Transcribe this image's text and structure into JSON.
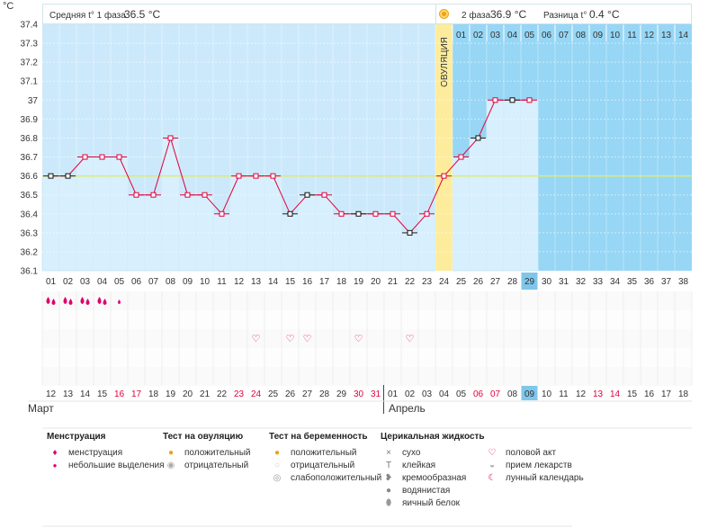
{
  "header": {
    "unit": "°С",
    "phase1_label": "Средняя t° 1 фаза",
    "phase1_value": "36.5 °С",
    "phase2_label": "2 фаза",
    "phase2_value": "36.9 °С",
    "diff_label": "Разница t°",
    "diff_value": "0.4 °С",
    "ovulation_label": "ОВУЛЯЦИЯ"
  },
  "chart_data": {
    "type": "line",
    "ylim": [
      36.1,
      37.4
    ],
    "yticks": [
      "36.1",
      "36.2",
      "36.3",
      "36.4",
      "36.5",
      "36.6",
      "36.7",
      "36.8",
      "36.9",
      "37",
      "37.1",
      "37.2",
      "37.3",
      "37.4"
    ],
    "cycle_days": [
      "01",
      "02",
      "03",
      "04",
      "05",
      "06",
      "07",
      "08",
      "09",
      "10",
      "11",
      "12",
      "13",
      "14",
      "15",
      "16",
      "17",
      "18",
      "19",
      "20",
      "21",
      "22",
      "23",
      "24",
      "25",
      "26",
      "27",
      "28",
      "29",
      "30",
      "31",
      "32",
      "33",
      "34",
      "35",
      "36",
      "37",
      "38"
    ],
    "phase2_days": [
      "01",
      "02",
      "03",
      "04",
      "05",
      "06",
      "07",
      "08",
      "09",
      "10",
      "11",
      "12",
      "13",
      "14"
    ],
    "temps": [
      36.6,
      36.6,
      36.7,
      36.7,
      36.7,
      36.5,
      36.5,
      36.8,
      36.5,
      36.5,
      36.4,
      36.6,
      36.6,
      36.6,
      36.4,
      36.5,
      36.5,
      36.4,
      36.4,
      36.4,
      36.4,
      36.3,
      36.4,
      36.6,
      36.7,
      36.8,
      37.0,
      37.0,
      37.0
    ],
    "marker_style": [
      "black",
      "black",
      "pink",
      "pink",
      "pink",
      "pink",
      "pink",
      "pink",
      "pink",
      "pink",
      "pink",
      "pink",
      "pink",
      "pink",
      "black",
      "black",
      "pink",
      "pink",
      "black",
      "pink",
      "pink",
      "black",
      "pink",
      "pink",
      "pink",
      "black",
      "pink",
      "black",
      "pink"
    ],
    "coverline": 36.6,
    "ovulation_day": 24,
    "current_day": 29,
    "menstruation": [
      2,
      2,
      2,
      2,
      1,
      0,
      0,
      0,
      0,
      0,
      0,
      0,
      0,
      0,
      0,
      0,
      0,
      0,
      0,
      0,
      0,
      0,
      0,
      0,
      0,
      0,
      0,
      0,
      0,
      0,
      0,
      0,
      0,
      0,
      0,
      0,
      0,
      0
    ],
    "intercourse_days": [
      13,
      15,
      16,
      19,
      22
    ],
    "calendar_dates": [
      "12",
      "13",
      "14",
      "15",
      "16",
      "17",
      "18",
      "19",
      "20",
      "21",
      "22",
      "23",
      "24",
      "25",
      "26",
      "27",
      "28",
      "29",
      "30",
      "31",
      "01",
      "02",
      "03",
      "04",
      "05",
      "06",
      "07",
      "08",
      "09",
      "10",
      "11",
      "12",
      "13",
      "14",
      "15",
      "16",
      "17",
      "18"
    ],
    "weekend_indices": [
      4,
      5,
      11,
      12,
      18,
      19,
      25,
      26,
      32,
      33
    ],
    "month_start_index": 20,
    "months": [
      "Март",
      "Апрель"
    ],
    "colors": {
      "phase1": "#cce9fb",
      "phase2": "#97d6f5",
      "fill": "#d8effd",
      "ovulation": "#fdec9c",
      "line": "#e0003c",
      "coverline": "#ddeb6f",
      "current": "#7fc6ea",
      "weekend": "#e0003c"
    }
  },
  "legend": {
    "menstruation": {
      "title": "Менструация",
      "items": [
        {
          "icon": "drops-icon",
          "label": "менструация"
        },
        {
          "icon": "drop-icon",
          "label": "небольшие выделения"
        }
      ]
    },
    "ovulation_test": {
      "title": "Тест на овуляцию",
      "items": [
        {
          "icon": "sun-positive-icon",
          "label": "положительный"
        },
        {
          "icon": "circle-negative-icon",
          "label": "отрицательный"
        }
      ]
    },
    "pregnancy_test": {
      "title": "Тест на беременность",
      "items": [
        {
          "icon": "sun-positive-icon",
          "label": "положительный"
        },
        {
          "icon": "circle-negative-icon",
          "label": "отрицательный"
        },
        {
          "icon": "circle-weak-icon",
          "label": "слабоположительный"
        }
      ]
    },
    "cervical": {
      "title": "Церикальная жидкость",
      "items": [
        {
          "icon": "cross-icon",
          "label": "сухо"
        },
        {
          "icon": "sticky-icon",
          "label": "клейкая"
        },
        {
          "icon": "creamy-icon",
          "label": "кремообразная"
        },
        {
          "icon": "watery-icon",
          "label": "водянистая"
        },
        {
          "icon": "eggwhite-icon",
          "label": "яичный белок"
        }
      ]
    },
    "other": {
      "items": [
        {
          "icon": "heart-icon",
          "label": "половой акт"
        },
        {
          "icon": "pill-icon",
          "label": "прием лекарств"
        },
        {
          "icon": "moon-icon",
          "label": "лунный календарь"
        }
      ]
    }
  }
}
